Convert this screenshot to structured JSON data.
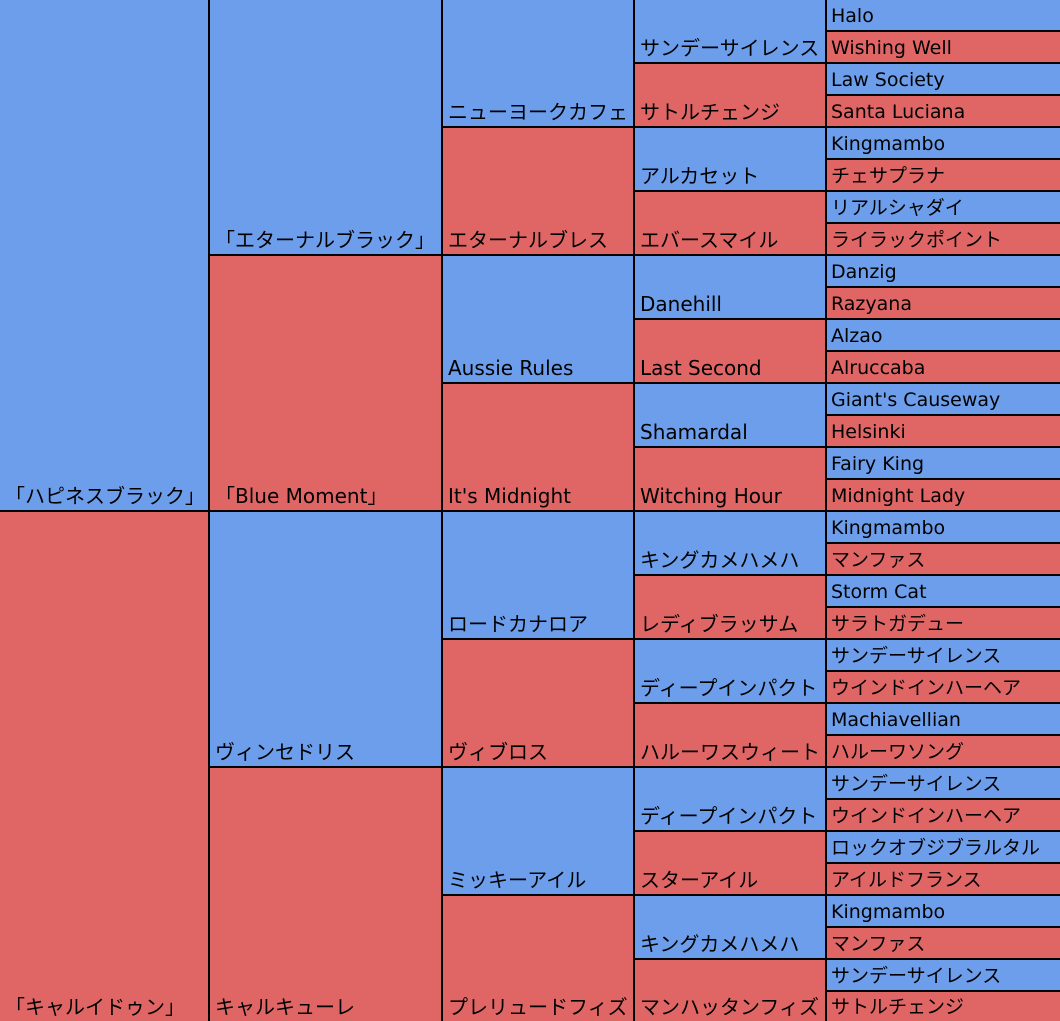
{
  "pedigree": {
    "generation_1": [
      {
        "name": "「ハピネスブラック」",
        "sex": "sire"
      },
      {
        "name": "「キャルイドゥン」",
        "sex": "dam"
      }
    ],
    "generation_2": [
      {
        "name": "「エターナルブラック」",
        "sex": "sire"
      },
      {
        "name": "「Blue Moment」",
        "sex": "dam"
      },
      {
        "name": "ヴィンセドリス",
        "sex": "sire"
      },
      {
        "name": "キャルキューレ",
        "sex": "dam"
      }
    ],
    "generation_3": [
      {
        "name": "ニューヨークカフェ",
        "sex": "sire"
      },
      {
        "name": "エターナルブレス",
        "sex": "dam"
      },
      {
        "name": "Aussie Rules",
        "sex": "sire"
      },
      {
        "name": "It's Midnight",
        "sex": "dam"
      },
      {
        "name": "ロードカナロア",
        "sex": "sire"
      },
      {
        "name": "ヴィブロス",
        "sex": "dam"
      },
      {
        "name": "ミッキーアイル",
        "sex": "sire"
      },
      {
        "name": "プレリュードフィズ",
        "sex": "dam"
      }
    ],
    "generation_4": [
      {
        "name": "サンデーサイレンス",
        "sex": "sire"
      },
      {
        "name": "サトルチェンジ",
        "sex": "dam"
      },
      {
        "name": "アルカセット",
        "sex": "sire"
      },
      {
        "name": "エバースマイル",
        "sex": "dam"
      },
      {
        "name": "Danehill",
        "sex": "sire"
      },
      {
        "name": "Last Second",
        "sex": "dam"
      },
      {
        "name": "Shamardal",
        "sex": "sire"
      },
      {
        "name": "Witching Hour",
        "sex": "dam"
      },
      {
        "name": "キングカメハメハ",
        "sex": "sire"
      },
      {
        "name": "レディブラッサム",
        "sex": "dam"
      },
      {
        "name": "ディープインパクト",
        "sex": "sire"
      },
      {
        "name": "ハルーワスウィート",
        "sex": "dam"
      },
      {
        "name": "ディープインパクト",
        "sex": "sire"
      },
      {
        "name": "スターアイル",
        "sex": "dam"
      },
      {
        "name": "キングカメハメハ",
        "sex": "sire"
      },
      {
        "name": "マンハッタンフィズ",
        "sex": "dam"
      }
    ],
    "generation_5": [
      {
        "name": "Halo",
        "sex": "sire"
      },
      {
        "name": "Wishing Well",
        "sex": "dam"
      },
      {
        "name": "Law Society",
        "sex": "sire"
      },
      {
        "name": "Santa Luciana",
        "sex": "dam"
      },
      {
        "name": "Kingmambo",
        "sex": "sire"
      },
      {
        "name": "チェサプラナ",
        "sex": "dam"
      },
      {
        "name": "リアルシャダイ",
        "sex": "sire"
      },
      {
        "name": "ライラックポイント",
        "sex": "dam"
      },
      {
        "name": "Danzig",
        "sex": "sire"
      },
      {
        "name": "Razyana",
        "sex": "dam"
      },
      {
        "name": "Alzao",
        "sex": "sire"
      },
      {
        "name": "Alruccaba",
        "sex": "dam"
      },
      {
        "name": "Giant's Causeway",
        "sex": "sire"
      },
      {
        "name": "Helsinki",
        "sex": "dam"
      },
      {
        "name": "Fairy King",
        "sex": "sire"
      },
      {
        "name": "Midnight Lady",
        "sex": "dam"
      },
      {
        "name": "Kingmambo",
        "sex": "sire"
      },
      {
        "name": "マンファス",
        "sex": "dam"
      },
      {
        "name": "Storm Cat",
        "sex": "sire"
      },
      {
        "name": "サラトガデュー",
        "sex": "dam"
      },
      {
        "name": "サンデーサイレンス",
        "sex": "sire"
      },
      {
        "name": "ウインドインハーヘア",
        "sex": "dam"
      },
      {
        "name": "Machiavellian",
        "sex": "sire"
      },
      {
        "name": "ハルーワソング",
        "sex": "dam"
      },
      {
        "name": "サンデーサイレンス",
        "sex": "sire"
      },
      {
        "name": "ウインドインハーヘア",
        "sex": "dam"
      },
      {
        "name": "ロックオブジブラルタル",
        "sex": "sire"
      },
      {
        "name": "アイルドフランス",
        "sex": "dam"
      },
      {
        "name": "Kingmambo",
        "sex": "sire"
      },
      {
        "name": "マンファス",
        "sex": "dam"
      },
      {
        "name": "サンデーサイレンス",
        "sex": "sire"
      },
      {
        "name": "サトルチェンジ",
        "sex": "dam"
      }
    ]
  },
  "colors": {
    "sire": "#6d9eeb",
    "dam": "#e06666",
    "border": "#000000"
  }
}
